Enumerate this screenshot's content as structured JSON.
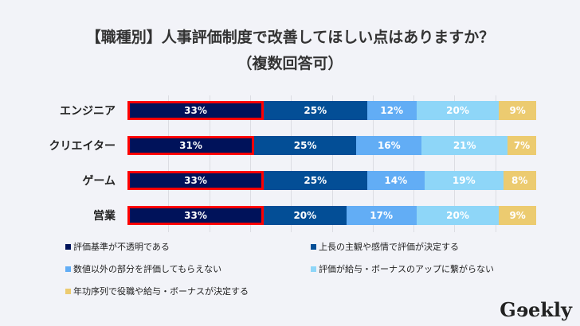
{
  "chart_data": {
    "type": "bar",
    "orientation": "horizontal-stacked-100",
    "title_line1": "【職種別】人事評価制度で改善してほしい点はありますか？",
    "title_line2": "（複数回答可）",
    "categories": [
      "エンジニア",
      "クリエイター",
      "ゲーム",
      "営業"
    ],
    "series": [
      {
        "name": "評価基準が不透明である",
        "color": "#00125a",
        "values": [
          33,
          31,
          33,
          33
        ],
        "highlighted": true
      },
      {
        "name": "上長の主観や感情で評価が決定する",
        "color": "#034e96",
        "values": [
          25,
          25,
          25,
          20
        ]
      },
      {
        "name": "数値以外の部分を評価してもらえない",
        "color": "#62adf5",
        "values": [
          12,
          16,
          14,
          17
        ]
      },
      {
        "name": "評価が給与・ボーナスのアップに繋がらない",
        "color": "#8ed6f8",
        "values": [
          20,
          21,
          19,
          20
        ]
      },
      {
        "name": "年功序列で役職や給与・ボーナスが決定する",
        "color": "#eccb70",
        "values": [
          9,
          7,
          8,
          9
        ]
      }
    ],
    "value_suffix": "%",
    "xlim": [
      0,
      100
    ],
    "grid": true,
    "legend_placement": "bottom"
  },
  "logo": "Geekly"
}
